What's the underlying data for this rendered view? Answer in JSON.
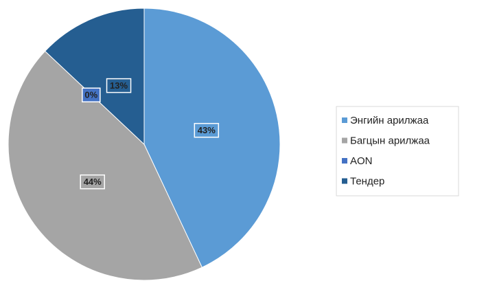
{
  "chart_data": {
    "type": "pie",
    "categories": [
      "Энгийн арилжаа",
      "Багцын арилжаа",
      "AON",
      "Тендер"
    ],
    "values": [
      43,
      44,
      0,
      13
    ],
    "value_labels": [
      "43%",
      "44%",
      "0%",
      "13%"
    ],
    "colors": [
      "#5b9bd5",
      "#a5a5a5",
      "#4472c4",
      "#255e91"
    ],
    "legend": "right"
  }
}
